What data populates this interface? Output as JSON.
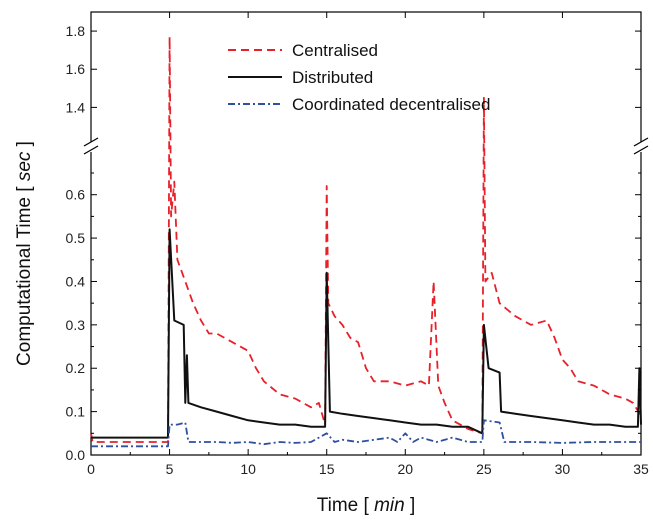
{
  "chart_data": {
    "type": "line",
    "xlabel": "Time [ min ]",
    "ylabel": "Computational Time [ sec ]",
    "xlim": [
      0,
      35
    ],
    "ylim_lower": [
      0,
      0.68
    ],
    "ylim_upper": [
      1.25,
      1.9
    ],
    "broken_y_axis": true,
    "x_ticks": [
      "0",
      "5",
      "10",
      "15",
      "20",
      "25",
      "30",
      "35"
    ],
    "y_ticks_lower": [
      "0.0",
      "0.1",
      "0.2",
      "0.3",
      "0.4",
      "0.5",
      "0.6"
    ],
    "y_ticks_upper": [
      "1.4",
      "1.6",
      "1.8"
    ],
    "legend_placement": "top-center",
    "series": [
      {
        "name": "Centralised",
        "color": "#e8202a",
        "style": "dashed",
        "points": [
          [
            0,
            0.05
          ],
          [
            0.1,
            0.03
          ],
          [
            4.9,
            0.03
          ],
          [
            5.0,
            1.77
          ],
          [
            5.1,
            0.55
          ],
          [
            5.3,
            0.63
          ],
          [
            5.5,
            0.45
          ],
          [
            6,
            0.4
          ],
          [
            6.5,
            0.35
          ],
          [
            7,
            0.31
          ],
          [
            7.5,
            0.28
          ],
          [
            8,
            0.28
          ],
          [
            9,
            0.26
          ],
          [
            10,
            0.24
          ],
          [
            10.5,
            0.2
          ],
          [
            11,
            0.17
          ],
          [
            12,
            0.14
          ],
          [
            13,
            0.13
          ],
          [
            14,
            0.11
          ],
          [
            14.5,
            0.12
          ],
          [
            14.9,
            0.07
          ],
          [
            15.0,
            0.62
          ],
          [
            15.1,
            0.35
          ],
          [
            15.5,
            0.32
          ],
          [
            16,
            0.3
          ],
          [
            16.5,
            0.27
          ],
          [
            17,
            0.26
          ],
          [
            17.5,
            0.2
          ],
          [
            18,
            0.17
          ],
          [
            19,
            0.17
          ],
          [
            20,
            0.16
          ],
          [
            21,
            0.17
          ],
          [
            21.5,
            0.16
          ],
          [
            21.8,
            0.4
          ],
          [
            22.1,
            0.16
          ],
          [
            22.5,
            0.12
          ],
          [
            23,
            0.08
          ],
          [
            24,
            0.06
          ],
          [
            24.9,
            0.05
          ],
          [
            25.0,
            1.45
          ],
          [
            25.1,
            0.4
          ],
          [
            25.5,
            0.42
          ],
          [
            26,
            0.35
          ],
          [
            27,
            0.32
          ],
          [
            28,
            0.3
          ],
          [
            29,
            0.31
          ],
          [
            29.5,
            0.27
          ],
          [
            30,
            0.22
          ],
          [
            30.5,
            0.2
          ],
          [
            31,
            0.17
          ],
          [
            32,
            0.16
          ],
          [
            33,
            0.14
          ],
          [
            34,
            0.13
          ],
          [
            34.5,
            0.12
          ],
          [
            35,
            0.09
          ]
        ]
      },
      {
        "name": "Distributed",
        "color": "#111111",
        "style": "solid",
        "points": [
          [
            0,
            0.04
          ],
          [
            4.9,
            0.04
          ],
          [
            5.0,
            0.52
          ],
          [
            5.3,
            0.31
          ],
          [
            5.9,
            0.3
          ],
          [
            6.0,
            0.12
          ],
          [
            6.1,
            0.23
          ],
          [
            6.2,
            0.12
          ],
          [
            7,
            0.11
          ],
          [
            8,
            0.1
          ],
          [
            9,
            0.09
          ],
          [
            10,
            0.08
          ],
          [
            11,
            0.075
          ],
          [
            12,
            0.07
          ],
          [
            13,
            0.07
          ],
          [
            14,
            0.065
          ],
          [
            14.9,
            0.065
          ],
          [
            15.0,
            0.42
          ],
          [
            15.2,
            0.1
          ],
          [
            16,
            0.095
          ],
          [
            17,
            0.09
          ],
          [
            18,
            0.085
          ],
          [
            19,
            0.08
          ],
          [
            20,
            0.075
          ],
          [
            21,
            0.07
          ],
          [
            22,
            0.07
          ],
          [
            23,
            0.065
          ],
          [
            24,
            0.065
          ],
          [
            24.9,
            0.05
          ],
          [
            25.0,
            0.3
          ],
          [
            25.3,
            0.2
          ],
          [
            26,
            0.19
          ],
          [
            26.1,
            0.1
          ],
          [
            27,
            0.095
          ],
          [
            28,
            0.09
          ],
          [
            29,
            0.085
          ],
          [
            30,
            0.08
          ],
          [
            31,
            0.075
          ],
          [
            32,
            0.07
          ],
          [
            33,
            0.07
          ],
          [
            34,
            0.065
          ],
          [
            34.8,
            0.065
          ],
          [
            34.9,
            0.2
          ],
          [
            35,
            0.07
          ]
        ]
      },
      {
        "name": "Coordinated decentralised",
        "color": "#2f4f9f",
        "style": "dashdot",
        "points": [
          [
            0,
            0.02
          ],
          [
            4.9,
            0.02
          ],
          [
            5.0,
            0.07
          ],
          [
            5.5,
            0.07
          ],
          [
            6.0,
            0.075
          ],
          [
            6.2,
            0.03
          ],
          [
            7,
            0.03
          ],
          [
            8,
            0.03
          ],
          [
            9,
            0.028
          ],
          [
            10,
            0.03
          ],
          [
            11,
            0.025
          ],
          [
            12,
            0.03
          ],
          [
            13,
            0.028
          ],
          [
            14,
            0.03
          ],
          [
            15.0,
            0.05
          ],
          [
            15.5,
            0.03
          ],
          [
            16,
            0.035
          ],
          [
            17,
            0.03
          ],
          [
            18,
            0.035
          ],
          [
            19,
            0.04
          ],
          [
            19.5,
            0.03
          ],
          [
            20,
            0.05
          ],
          [
            20.5,
            0.03
          ],
          [
            21,
            0.04
          ],
          [
            22,
            0.03
          ],
          [
            23,
            0.04
          ],
          [
            24,
            0.03
          ],
          [
            24.9,
            0.03
          ],
          [
            25.0,
            0.08
          ],
          [
            26,
            0.075
          ],
          [
            26.3,
            0.03
          ],
          [
            27,
            0.03
          ],
          [
            28,
            0.03
          ],
          [
            30,
            0.028
          ],
          [
            32,
            0.03
          ],
          [
            34,
            0.03
          ],
          [
            35,
            0.03
          ]
        ]
      }
    ]
  }
}
